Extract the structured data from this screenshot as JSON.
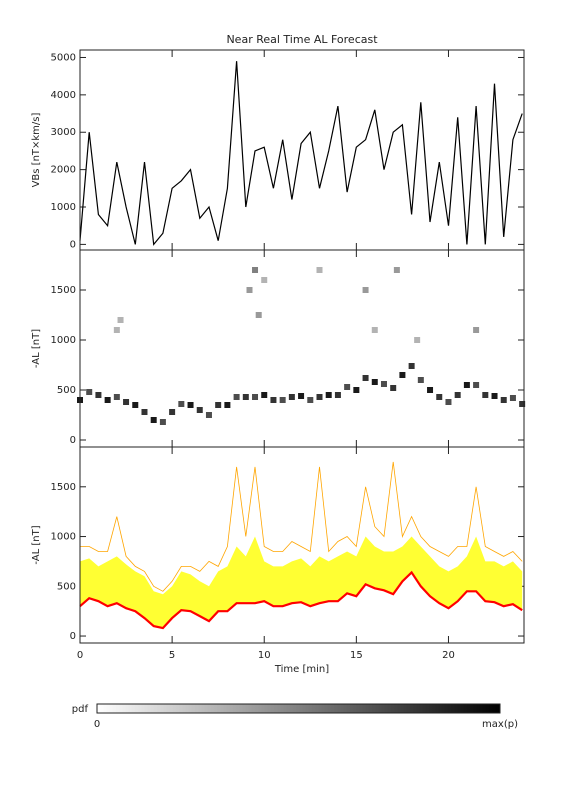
{
  "chart_data": [
    {
      "type": "line",
      "title": "Near Real Time AL Forecast",
      "ylabel": "VBs [nT×km/s]",
      "x": [
        0,
        0.5,
        1,
        1.5,
        2,
        2.5,
        3,
        3.5,
        4,
        4.5,
        5,
        5.5,
        6,
        6.5,
        7,
        7.5,
        8,
        8.5,
        9,
        9.5,
        10,
        10.5,
        11,
        11.5,
        12,
        12.5,
        13,
        13.5,
        14,
        14.5,
        15,
        15.5,
        16,
        16.5,
        17,
        17.5,
        18,
        18.5,
        19,
        19.5,
        20,
        20.5,
        21,
        21.5,
        22,
        22.5,
        23,
        23.5,
        24
      ],
      "series": [
        {
          "color": "#000000",
          "values": [
            100,
            3000,
            800,
            500,
            2200,
            1000,
            0,
            2200,
            0,
            300,
            1500,
            1700,
            2000,
            700,
            1000,
            100,
            1500,
            4900,
            1000,
            2500,
            2600,
            1500,
            2800,
            1200,
            2700,
            3000,
            1500,
            2500,
            3700,
            1400,
            2600,
            2800,
            3600,
            2000,
            3000,
            3200,
            800,
            3800,
            600,
            2200,
            500,
            3400,
            0,
            3700,
            0,
            4300,
            200,
            2800,
            3500
          ]
        }
      ],
      "xlim": [
        0,
        24.1
      ],
      "xticks": [
        0,
        5,
        10,
        15,
        20
      ],
      "ylim": [
        -150,
        5200
      ],
      "yticks": [
        0,
        1000,
        2000,
        3000,
        4000,
        5000
      ]
    },
    {
      "type": "density",
      "ylabel": "-AL [nT]",
      "x": [
        0,
        0.5,
        1,
        1.5,
        2,
        2.5,
        3,
        3.5,
        4,
        4.5,
        5,
        5.5,
        6,
        6.5,
        7,
        7.5,
        8,
        8.5,
        9,
        9.5,
        10,
        10.5,
        11,
        11.5,
        12,
        12.5,
        13,
        13.5,
        14,
        14.5,
        15,
        15.5,
        16,
        16.5,
        17,
        17.5,
        18,
        18.5,
        19,
        19.5,
        20,
        20.5,
        21,
        21.5,
        22,
        22.5,
        23,
        23.5,
        24,
        2,
        2.2,
        9.2,
        9.5,
        9.7,
        10,
        13,
        15.5,
        16,
        17.2,
        18.3,
        21.5
      ],
      "y": [
        400,
        480,
        450,
        400,
        430,
        380,
        350,
        280,
        200,
        180,
        280,
        360,
        350,
        300,
        250,
        350,
        350,
        430,
        430,
        430,
        450,
        400,
        400,
        430,
        440,
        400,
        430,
        450,
        450,
        530,
        500,
        620,
        580,
        560,
        520,
        650,
        740,
        600,
        500,
        430,
        380,
        450,
        550,
        550,
        450,
        440,
        400,
        420,
        360,
        1100,
        1200,
        1500,
        1700,
        1250,
        1600,
        1700,
        1500,
        1100,
        1700,
        1000,
        1100
      ],
      "p": [
        0.9,
        0.7,
        0.8,
        0.9,
        0.7,
        0.8,
        0.9,
        0.8,
        0.9,
        0.7,
        0.8,
        0.7,
        0.9,
        0.8,
        0.7,
        0.8,
        0.9,
        0.7,
        0.8,
        0.7,
        0.9,
        0.8,
        0.7,
        0.8,
        0.9,
        0.7,
        0.8,
        0.9,
        0.8,
        0.7,
        0.9,
        0.8,
        0.9,
        0.7,
        0.8,
        0.9,
        0.8,
        0.7,
        0.9,
        0.8,
        0.7,
        0.8,
        0.9,
        0.7,
        0.8,
        0.9,
        0.8,
        0.7,
        0.8,
        0.3,
        0.3,
        0.4,
        0.5,
        0.4,
        0.3,
        0.3,
        0.4,
        0.3,
        0.4,
        0.3,
        0.4
      ],
      "xlim": [
        0,
        24.1
      ],
      "xticks": [
        0,
        5,
        10,
        15,
        20
      ],
      "ylim": [
        -70,
        1900
      ],
      "yticks": [
        0,
        500,
        1000,
        1500
      ]
    },
    {
      "type": "band",
      "ylabel": "-AL [nT]",
      "xlabel": "Time [min]",
      "x": [
        0,
        0.5,
        1,
        1.5,
        2,
        2.5,
        3,
        3.5,
        4,
        4.5,
        5,
        5.5,
        6,
        6.5,
        7,
        7.5,
        8,
        8.5,
        9,
        9.5,
        10,
        10.5,
        11,
        11.5,
        12,
        12.5,
        13,
        13.5,
        14,
        14.5,
        15,
        15.5,
        16,
        16.5,
        17,
        17.5,
        18,
        18.5,
        19,
        19.5,
        20,
        20.5,
        21,
        21.5,
        22,
        22.5,
        23,
        23.5,
        24
      ],
      "series": [
        {
          "color": "#ffa500",
          "values": [
            900,
            900,
            850,
            850,
            1200,
            800,
            700,
            650,
            500,
            450,
            550,
            700,
            700,
            650,
            750,
            700,
            900,
            1700,
            1000,
            1700,
            900,
            850,
            850,
            950,
            900,
            850,
            1700,
            850,
            950,
            1000,
            900,
            1500,
            1100,
            1000,
            1750,
            1000,
            1200,
            1000,
            900,
            850,
            800,
            900,
            900,
            1500,
            900,
            850,
            800,
            850,
            750
          ]
        },
        {
          "color": "#ffff33",
          "values": [
            750,
            780,
            700,
            750,
            800,
            720,
            650,
            600,
            450,
            420,
            500,
            650,
            620,
            550,
            500,
            650,
            700,
            900,
            800,
            1000,
            750,
            700,
            700,
            750,
            780,
            700,
            800,
            750,
            800,
            850,
            800,
            1000,
            900,
            850,
            850,
            900,
            1000,
            900,
            800,
            700,
            650,
            700,
            800,
            1000,
            750,
            750,
            700,
            750,
            650
          ]
        },
        {
          "color": "#ff0000",
          "values": [
            300,
            380,
            350,
            300,
            330,
            280,
            250,
            180,
            100,
            80,
            180,
            260,
            250,
            200,
            150,
            250,
            250,
            330,
            330,
            330,
            350,
            300,
            300,
            330,
            340,
            300,
            330,
            350,
            350,
            430,
            400,
            520,
            480,
            460,
            420,
            550,
            640,
            500,
            400,
            330,
            280,
            350,
            450,
            450,
            350,
            340,
            300,
            320,
            260
          ]
        }
      ],
      "xlim": [
        0,
        24.1
      ],
      "xticks": [
        0,
        5,
        10,
        15,
        20
      ],
      "ylim": [
        -70,
        1900
      ],
      "yticks": [
        0,
        500,
        1000,
        1500
      ]
    }
  ],
  "colorbar": {
    "label": "pdf",
    "min_label": "0",
    "max_label": "max(p)"
  }
}
